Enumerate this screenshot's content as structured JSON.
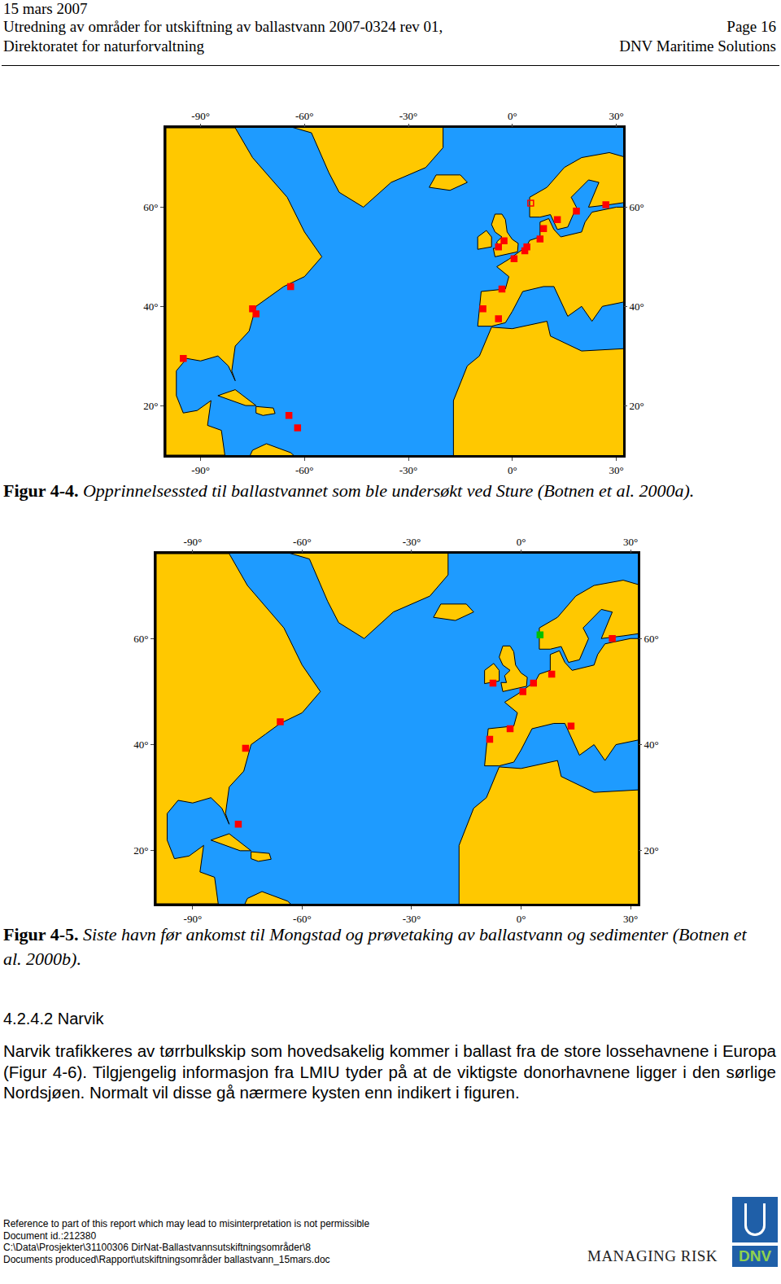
{
  "header": {
    "date": "15 mars 2007",
    "title": "Utredning av områder for utskiftning av ballastvann  2007-0324 rev 01,",
    "page": "Page 16",
    "client": "Direktoratet for naturforvaltning",
    "company": "DNV Maritime Solutions"
  },
  "chart_data": [
    {
      "type": "scatter",
      "caption_label": "Figur 4-4.",
      "caption": "Opprinnelsessted til ballastvannet som ble undersøkt ved Sture (Botnen et al. 2000a).",
      "xlim": [
        -100,
        32
      ],
      "ylim": [
        10,
        76
      ],
      "xticks": [
        {
          "value": -90,
          "label": "-90°"
        },
        {
          "value": -60,
          "label": "-60°"
        },
        {
          "value": -30,
          "label": "-30°"
        },
        {
          "value": 0,
          "label": "0°"
        },
        {
          "value": 30,
          "label": "30°"
        }
      ],
      "yticks": [
        {
          "value": 20,
          "label": "20°"
        },
        {
          "value": 40,
          "label": "40°"
        },
        {
          "value": 60,
          "label": "60°"
        }
      ],
      "grid": false,
      "series": [
        {
          "color": "#ff0000",
          "marker": "square-open",
          "x": [
            5.3
          ],
          "y": [
            60.8
          ]
        },
        {
          "color": "#ff0000",
          "marker": "square",
          "x": [
            13,
            18.5,
            27,
            9,
            8,
            4.2,
            3.6,
            -2.4,
            -4,
            0.5,
            -3,
            -8.5,
            -4,
            -64,
            -75,
            -74,
            -95,
            -64.5,
            -62
          ],
          "y": [
            57.5,
            59.2,
            60.5,
            55.7,
            53.6,
            52,
            51.2,
            53.2,
            52,
            49.6,
            43.5,
            39.5,
            37.5,
            44,
            39.5,
            38.5,
            29.5,
            18,
            15.5
          ]
        }
      ]
    },
    {
      "type": "scatter",
      "caption_label": "Figur 4-5.",
      "caption": "Siste havn før ankomst til Mongstad og prøvetaking av ballastvann og sedimenter (Botnen et al. 2000b).",
      "xlim": [
        -100,
        32
      ],
      "ylim": [
        10,
        76
      ],
      "xticks": [
        {
          "value": -90,
          "label": "-90°"
        },
        {
          "value": -60,
          "label": "-60°"
        },
        {
          "value": -30,
          "label": "-30°"
        },
        {
          "value": 0,
          "label": "0°"
        },
        {
          "value": 30,
          "label": "30°"
        }
      ],
      "yticks": [
        {
          "value": 20,
          "label": "20°"
        },
        {
          "value": 40,
          "label": "40°"
        },
        {
          "value": 60,
          "label": "60°"
        }
      ],
      "grid": false,
      "series": [
        {
          "color": "#00c000",
          "marker": "square",
          "x": [
            5.2
          ],
          "y": [
            60.7
          ]
        },
        {
          "color": "#ff0000",
          "marker": "square",
          "x": [
            25,
            8.4,
            3.4,
            0.5,
            -7.7,
            13.7,
            -8.6,
            -3,
            -66,
            -75.5,
            -77.5
          ],
          "y": [
            60,
            53.3,
            51.6,
            50,
            51.6,
            43.5,
            41,
            43,
            44.3,
            39.3,
            25
          ]
        }
      ]
    }
  ],
  "section": {
    "number": "4.2.4.2",
    "title": "Narvik",
    "text": "Narvik trafikkeres av tørrbulkskip som hovedsakelig kommer i ballast fra de store lossehavnene i Europa (Figur 4-6). Tilgjengelig informasjon fra LMIU tyder på at de viktigste donorhavnene ligger i den sørlige Nordsjøen. Normalt vil disse gå nærmere kysten enn indikert i figuren."
  },
  "footer": {
    "lines": [
      "Reference to part of this report which may lead to misinterpretation is not permissible",
      "Document id.:212380",
      "C:\\Data\\Prosjekter\\31100306 DirNat-Ballastvannsutskiftningsområder\\8",
      "Documents produced\\Rapport\\utskiftningsområder ballastvann_15mars.doc"
    ],
    "slogan": "MANAGING RISK",
    "logo": "DNV"
  }
}
